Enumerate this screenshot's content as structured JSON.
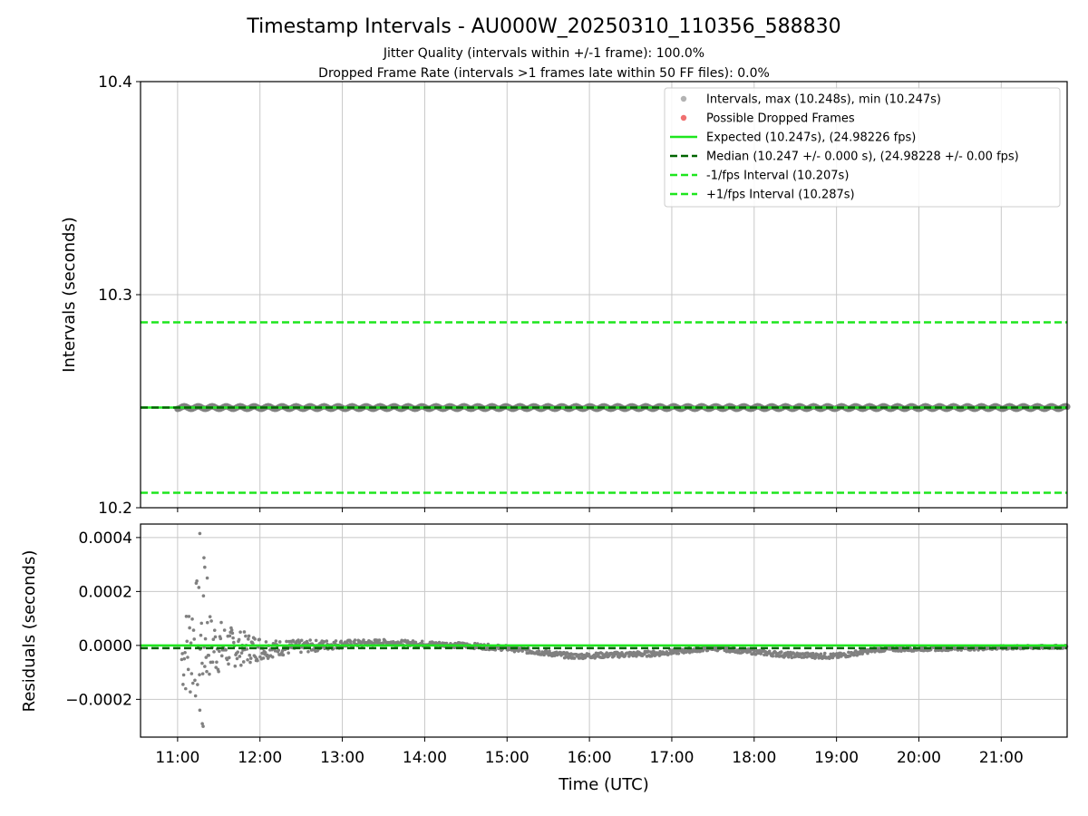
{
  "figure": {
    "title": "Timestamp Intervals - AU000W_20250310_110356_588830",
    "subtitle_1": "Jitter Quality (intervals within +/-1 frame): 100.0%",
    "subtitle_2": "Dropped Frame Rate (intervals >1 frames late within 50 FF files): 0.0%"
  },
  "colors": {
    "points": "#808080",
    "legend_points": "#b3b3b3",
    "dropped": "#f07070",
    "expected": "#1ee61e",
    "median": "#006400",
    "fps_bounds": "#1ee61e",
    "grid": "#c8c8c8"
  },
  "chart_data": [
    {
      "type": "scatter",
      "ylabel": "Intervals (seconds)",
      "xlabel": "",
      "ylim": [
        10.2,
        10.4
      ],
      "y_ticks": [
        "10.2",
        "10.3",
        "10.4"
      ],
      "y_tick_values": [
        10.2,
        10.3,
        10.4
      ],
      "xlim_hours": [
        10.55,
        21.8
      ],
      "grid": true,
      "legend_position": "top-right",
      "legend": [
        {
          "label": "Intervals, max (10.248s), min (10.247s)",
          "marker": "point-gray"
        },
        {
          "label": "Possible Dropped Frames",
          "marker": "point-red"
        },
        {
          "label": "Expected (10.247s), (24.98226 fps)",
          "marker": "solid-green"
        },
        {
          "label": "Median (10.247 +/- 0.000 s), (24.98228 +/- 0.00 fps)",
          "marker": "dashed-darkgreen"
        },
        {
          "label": "-1/fps Interval (10.207s)",
          "marker": "dashed-green"
        },
        {
          "label": "+1/fps Interval (10.287s)",
          "marker": "dashed-green"
        }
      ],
      "reference_lines": {
        "expected": 10.247,
        "median": 10.247,
        "minus_fps": 10.207,
        "plus_fps": 10.287
      },
      "series": [
        {
          "values_summary": {
            "start_hour": 11.0,
            "end_hour": 21.8,
            "min": 10.247,
            "max": 10.248
          }
        }
      ]
    },
    {
      "type": "scatter",
      "ylabel": "Residuals (seconds)",
      "xlabel": "Time (UTC)",
      "ylim": [
        -0.00034,
        0.00045
      ],
      "y_ticks": [
        "−0.0002",
        "0.0000",
        "0.0002",
        "0.0004"
      ],
      "y_tick_values": [
        -0.0002,
        0.0,
        0.0002,
        0.0004
      ],
      "x_ticks": [
        "11:00",
        "12:00",
        "13:00",
        "14:00",
        "15:00",
        "16:00",
        "17:00",
        "18:00",
        "19:00",
        "20:00",
        "21:00"
      ],
      "x_tick_hours": [
        11,
        12,
        13,
        14,
        15,
        16,
        17,
        18,
        19,
        20,
        21
      ],
      "xlim_hours": [
        10.55,
        21.8
      ],
      "grid": true,
      "reference_lines": {
        "expected": 0.0,
        "median": -1e-05
      },
      "residual_envelope": [
        {
          "hour": 11.05,
          "spread": 0.00012,
          "offset": -5e-05
        },
        {
          "hour": 11.2,
          "spread": 0.00025,
          "offset": 3e-05
        },
        {
          "hour": 11.4,
          "spread": 0.00012,
          "offset": 0.0
        },
        {
          "hour": 11.7,
          "spread": 7e-05,
          "offset": -1e-05
        },
        {
          "hour": 12.2,
          "spread": 3e-05,
          "offset": -1e-05
        },
        {
          "hour": 13.0,
          "spread": 1.5e-05,
          "offset": 5e-06
        },
        {
          "hour": 13.5,
          "spread": 1e-05,
          "offset": 1.2e-05
        },
        {
          "hour": 14.5,
          "spread": 1e-05,
          "offset": 0.0
        },
        {
          "hour": 15.0,
          "spread": 1e-05,
          "offset": -1e-05
        },
        {
          "hour": 15.8,
          "spread": 1e-05,
          "offset": -4e-05
        },
        {
          "hour": 16.8,
          "spread": 1e-05,
          "offset": -3e-05
        },
        {
          "hour": 17.5,
          "spread": 8e-06,
          "offset": -1e-05
        },
        {
          "hour": 18.4,
          "spread": 1e-05,
          "offset": -3.5e-05
        },
        {
          "hour": 19.0,
          "spread": 1e-05,
          "offset": -4e-05
        },
        {
          "hour": 19.5,
          "spread": 8e-06,
          "offset": -1.5e-05
        },
        {
          "hour": 20.5,
          "spread": 8e-06,
          "offset": -1e-05
        },
        {
          "hour": 21.8,
          "spread": 6e-06,
          "offset": -5e-06
        }
      ],
      "notable_points": [
        {
          "hour": 11.27,
          "value": 0.000415
        },
        {
          "hour": 11.32,
          "value": 0.000325
        },
        {
          "hour": 11.33,
          "value": 0.00029
        },
        {
          "hour": 11.36,
          "value": 0.00025
        },
        {
          "hour": 11.27,
          "value": -0.00024
        },
        {
          "hour": 11.3,
          "value": -0.00029
        },
        {
          "hour": 11.31,
          "value": -0.0003
        }
      ]
    }
  ]
}
